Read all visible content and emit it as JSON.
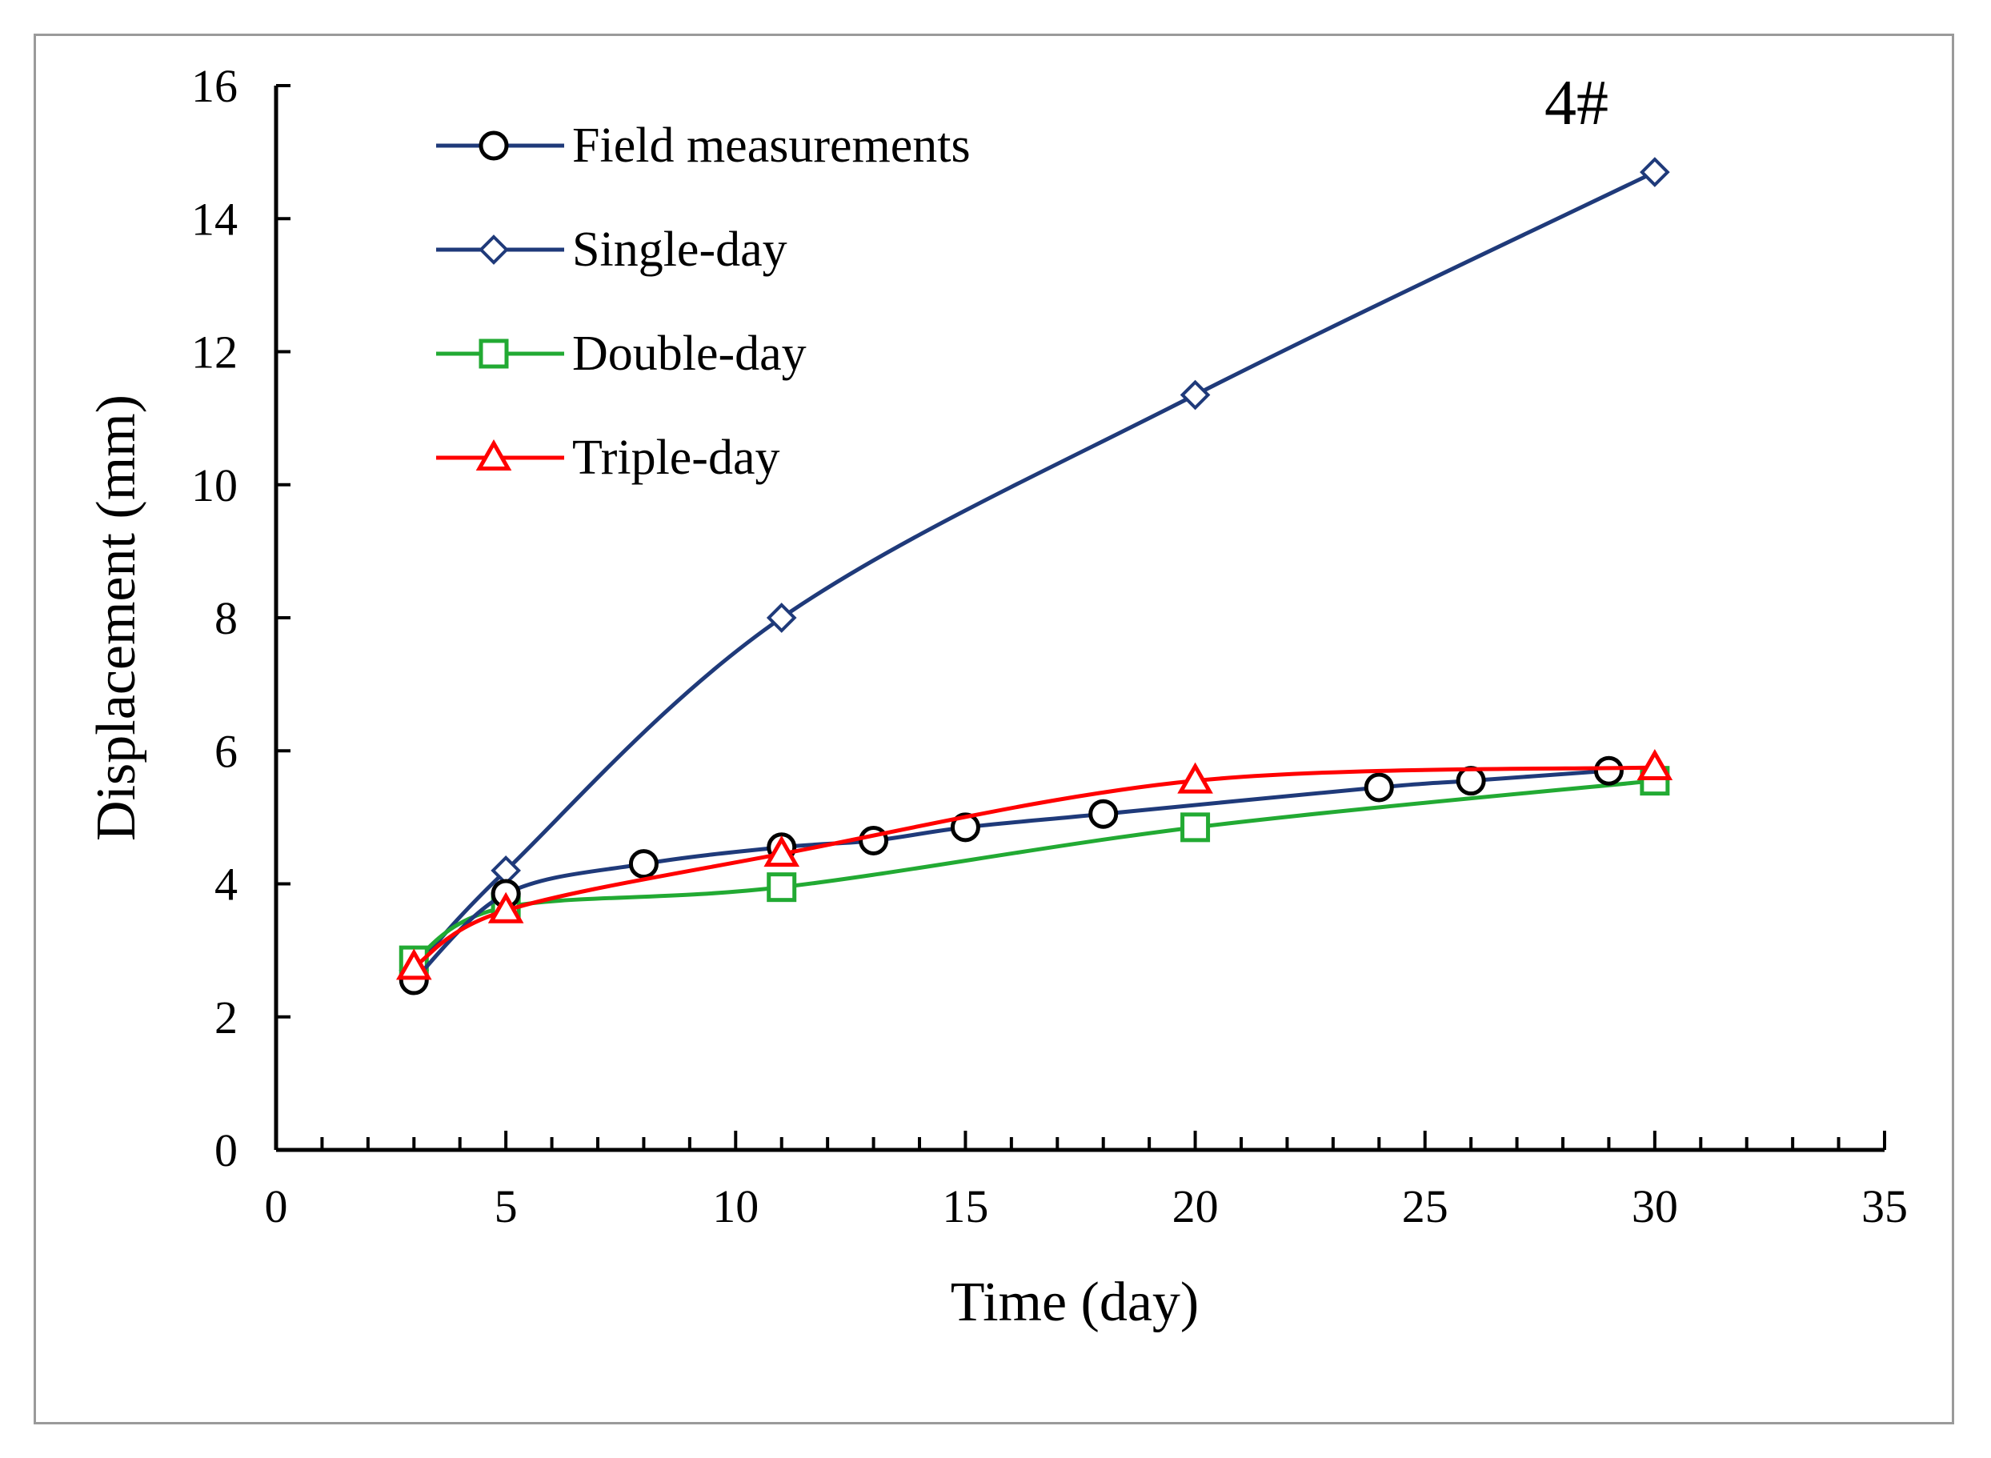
{
  "chart_data": {
    "type": "line",
    "title": "",
    "annotation": "4#",
    "xlabel": "Time (day)",
    "ylabel": "Displacement (mm)",
    "xlim": [
      0,
      35
    ],
    "ylim": [
      0,
      16
    ],
    "xticks": [
      0,
      5,
      10,
      15,
      20,
      25,
      30,
      35
    ],
    "yticks": [
      0,
      2,
      4,
      6,
      8,
      10,
      12,
      14,
      16
    ],
    "x_minor_step": 1,
    "legend_position": "top-left",
    "series": [
      {
        "name": "Field measurements",
        "color": "#1f3a7a",
        "marker": "circle",
        "marker_color": "#000000",
        "x": [
          3,
          5,
          8,
          11,
          13,
          15,
          18,
          24,
          26,
          29
        ],
        "y": [
          2.55,
          3.85,
          4.3,
          4.55,
          4.65,
          4.85,
          5.05,
          5.45,
          5.55,
          5.7
        ]
      },
      {
        "name": "Single-day",
        "color": "#1f3a7a",
        "marker": "diamond",
        "marker_color": "#1f3a7a",
        "x": [
          3,
          5,
          11,
          20,
          30
        ],
        "y": [
          2.7,
          4.2,
          8.0,
          11.35,
          14.7
        ]
      },
      {
        "name": "Double-day",
        "color": "#22aa33",
        "marker": "square",
        "marker_color": "#22aa33",
        "x": [
          3,
          5,
          11,
          20,
          30
        ],
        "y": [
          2.85,
          3.65,
          3.95,
          4.85,
          5.55
        ]
      },
      {
        "name": "Triple-day",
        "color": "#ff0000",
        "marker": "triangle",
        "marker_color": "#ff0000",
        "x": [
          3,
          5,
          11,
          20,
          30
        ],
        "y": [
          2.75,
          3.6,
          4.45,
          5.55,
          5.75
        ]
      }
    ]
  }
}
